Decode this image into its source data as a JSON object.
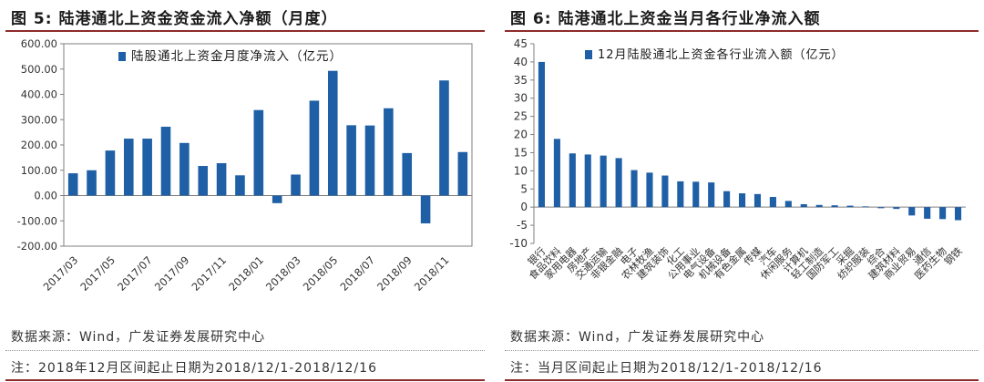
{
  "colors": {
    "bar": "#1f5fa5",
    "axis": "#7f7f7f",
    "title_rule": "#8c2b2b"
  },
  "left": {
    "title": "图 5: 陆港通北上资金资金流入净额（月度）",
    "source": "数据来源：Wind，广发证券发展研究中心",
    "note": "注：2018年12月区间起止日期为2018/12/1-2018/12/16"
  },
  "right": {
    "title": "图 6: 陆港通北上资金当月各行业净流入额",
    "source": "数据来源：Wind，广发证券发展研究中心",
    "note": "注：当月区间起止日期为2018/12/1-2018/12/16"
  },
  "chart_data": [
    {
      "type": "bar",
      "title": "",
      "legend": "陆股通北上资金月度净流入（亿元）",
      "categories": [
        "2017/03",
        "2017/04",
        "2017/05",
        "2017/06",
        "2017/07",
        "2017/08",
        "2017/09",
        "2017/10",
        "2017/11",
        "2017/12",
        "2018/01",
        "2018/02",
        "2018/03",
        "2018/04",
        "2018/05",
        "2018/06",
        "2018/07",
        "2018/08",
        "2018/09",
        "2018/10",
        "2018/11",
        "2018/12"
      ],
      "x_tick_labels": [
        "2017/03",
        "2017/05",
        "2017/07",
        "2017/09",
        "2017/11",
        "2018/01",
        "2018/03",
        "2018/05",
        "2018/07",
        "2018/09",
        "2018/11"
      ],
      "values": [
        88,
        100,
        178,
        225,
        225,
        272,
        208,
        117,
        128,
        80,
        338,
        -30,
        83,
        375,
        493,
        278,
        277,
        345,
        168,
        -110,
        455,
        172
      ],
      "ylim": [
        -200,
        600
      ],
      "yticks": [
        "600.00",
        "500.00",
        "400.00",
        "300.00",
        "200.00",
        "100.00",
        "0.00",
        "-100.00",
        "-200.00"
      ],
      "ytick_values": [
        600,
        500,
        400,
        300,
        200,
        100,
        0,
        -100,
        -200
      ]
    },
    {
      "type": "bar",
      "title": "",
      "legend": "12月陆股通北上资金各行业流入额（亿元）",
      "categories": [
        "银行",
        "食品饮料",
        "家用电器",
        "房地产",
        "交通运输",
        "非银金融",
        "电子",
        "农林牧渔",
        "建筑装饰",
        "化工",
        "公用事业",
        "电气设备",
        "机械设备",
        "有色金属",
        "传媒",
        "汽车",
        "休闲服务",
        "计算机",
        "轻工制造",
        "国防军工",
        "采掘",
        "纺织服装",
        "综合",
        "建筑材料",
        "商业贸易",
        "通信",
        "医药生物",
        "钢铁"
      ],
      "values": [
        40,
        18.8,
        14.8,
        14.5,
        14.2,
        13.5,
        10.2,
        9.5,
        8.7,
        7.1,
        7.0,
        6.8,
        4.4,
        3.8,
        3.6,
        2.8,
        1.7,
        0.8,
        0.6,
        0.5,
        0.4,
        0.2,
        -0.3,
        -0.5,
        -2.3,
        -3.2,
        -3.3,
        -3.6
      ],
      "ylim": [
        -10,
        45
      ],
      "yticks": [
        "45",
        "40",
        "35",
        "30",
        "25",
        "20",
        "15",
        "10",
        "5",
        "0",
        "-5",
        "-10"
      ],
      "ytick_values": [
        45,
        40,
        35,
        30,
        25,
        20,
        15,
        10,
        5,
        0,
        -5,
        -10
      ]
    }
  ]
}
